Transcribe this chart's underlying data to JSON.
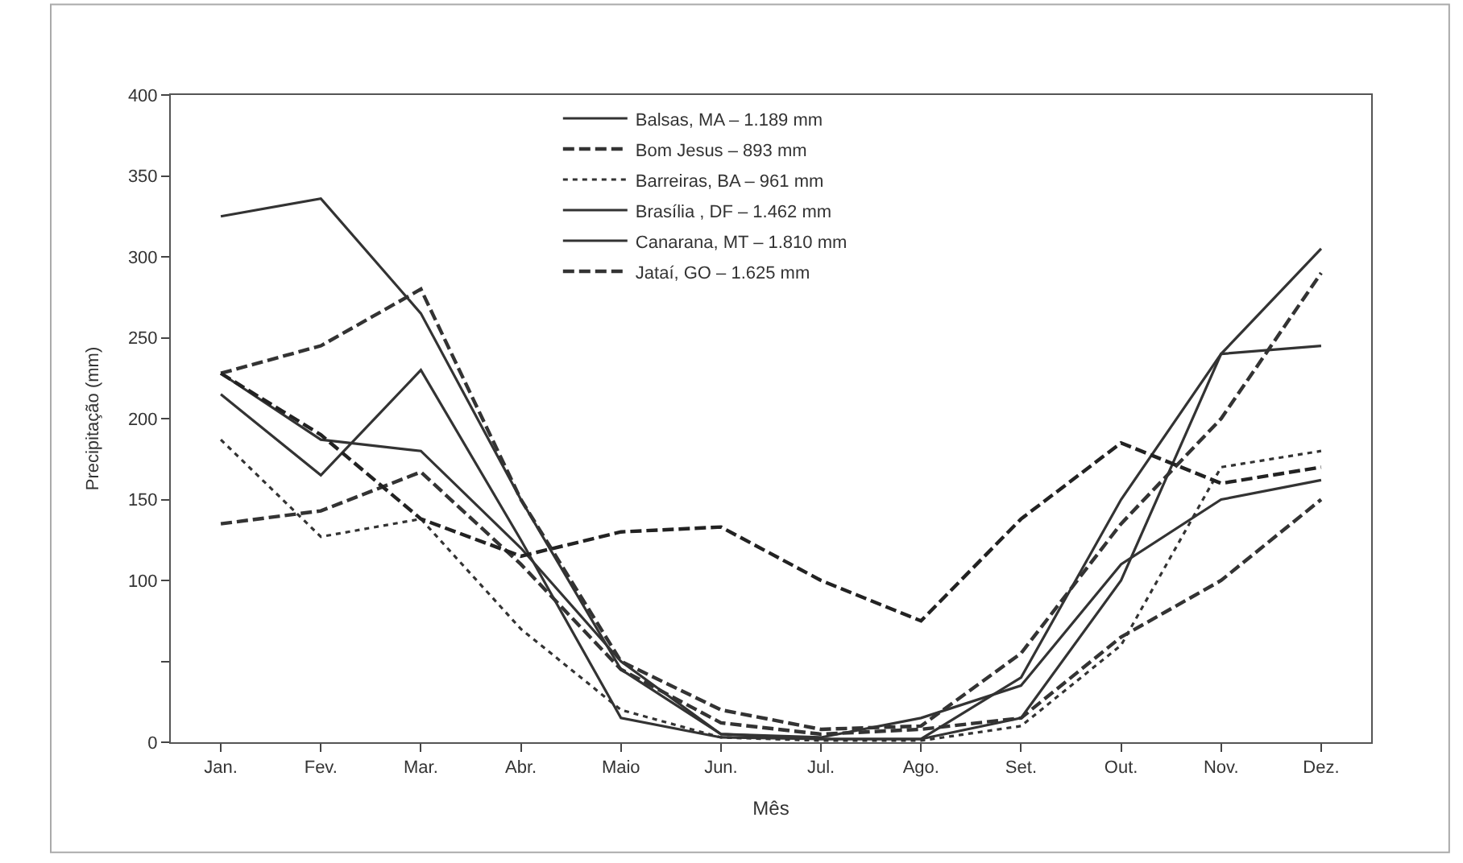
{
  "chart_data": {
    "type": "line",
    "xlabel": "Mês",
    "ylabel": "Precipitação (mm)",
    "categories": [
      "Jan.",
      "Fev.",
      "Mar.",
      "Abr.",
      "Maio",
      "Jun.",
      "Jul.",
      "Ago.",
      "Set.",
      "Out.",
      "Nov.",
      "Dez."
    ],
    "ylim": [
      0,
      400
    ],
    "yticks": [
      0,
      {
        "value": 50,
        "label": null
      },
      100,
      150,
      200,
      250,
      300,
      350,
      400
    ],
    "legend": "top",
    "marker": "none",
    "series": [
      {
        "name": "Balsas, MA – 1.189 mm",
        "color": "#333333",
        "line_style": "solid",
        "values": [
          228,
          187,
          180,
          120,
          50,
          5,
          3,
          15,
          35,
          110,
          150,
          162
        ]
      },
      {
        "name": "Bom Jesus – 893 mm",
        "color": "#333333",
        "line_style": "dashed",
        "values": [
          135,
          143,
          167,
          110,
          45,
          12,
          5,
          8,
          15,
          65,
          100,
          150
        ]
      },
      {
        "name": "Barreiras, BA – 961 mm",
        "color": "#333333",
        "line_style": "dotted",
        "values": [
          187,
          127,
          138,
          70,
          20,
          3,
          1,
          1,
          10,
          60,
          170,
          180
        ]
      },
      {
        "name": "Brasília , DF – 1.462 mm",
        "color": "#333333",
        "line_style": "solid",
        "values": [
          215,
          165,
          230,
          125,
          15,
          3,
          2,
          2,
          15,
          100,
          240,
          245
        ]
      },
      {
        "name": "Canarana, MT – 1.810 mm",
        "color": "#333333",
        "line_style": "solid",
        "values": [
          325,
          336,
          265,
          150,
          45,
          5,
          2,
          2,
          40,
          150,
          240,
          305
        ]
      },
      {
        "name": "Jataí, GO – 1.625 mm",
        "color": "#333333",
        "line_style": "dashed",
        "values": [
          228,
          245,
          280,
          150,
          50,
          20,
          8,
          10,
          55,
          135,
          200,
          290
        ]
      },
      {
        "color": "#222222",
        "line_style": "dashed",
        "values": [
          228,
          190,
          138,
          115,
          130,
          133,
          100,
          75,
          138,
          185,
          160,
          170
        ]
      }
    ]
  }
}
